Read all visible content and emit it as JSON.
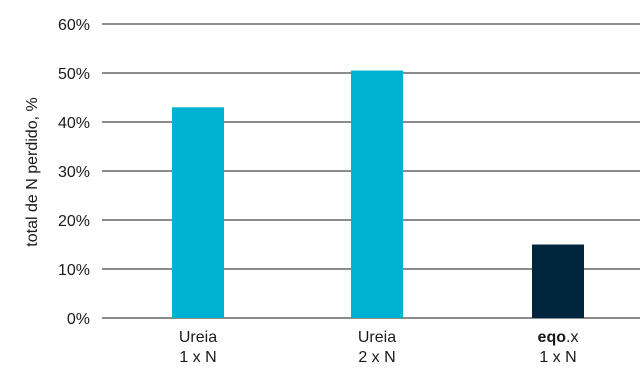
{
  "chart_data": {
    "type": "bar",
    "ylabel": "total de N perdido, %",
    "ylim": [
      0,
      60
    ],
    "yticks": [
      0,
      10,
      20,
      30,
      40,
      50,
      60
    ],
    "ytick_labels": [
      "0%",
      "10%",
      "20%",
      "30%",
      "40%",
      "50%",
      "60%"
    ],
    "grid": true,
    "categories": [
      {
        "line1": "Ureia",
        "line1_suffix": "",
        "line2": "1 x N"
      },
      {
        "line1": "Ureia",
        "line1_suffix": "",
        "line2": "2 x N"
      },
      {
        "line1": "eqo",
        "line1_suffix": ".x",
        "line2": "1 x N"
      }
    ],
    "values": [
      43,
      50.5,
      15
    ],
    "colors": [
      "#00b2d1",
      "#00b2d1",
      "#00263e"
    ]
  },
  "colors": {
    "gridline": "#1a1a1a",
    "text": "#1a1a1a"
  }
}
